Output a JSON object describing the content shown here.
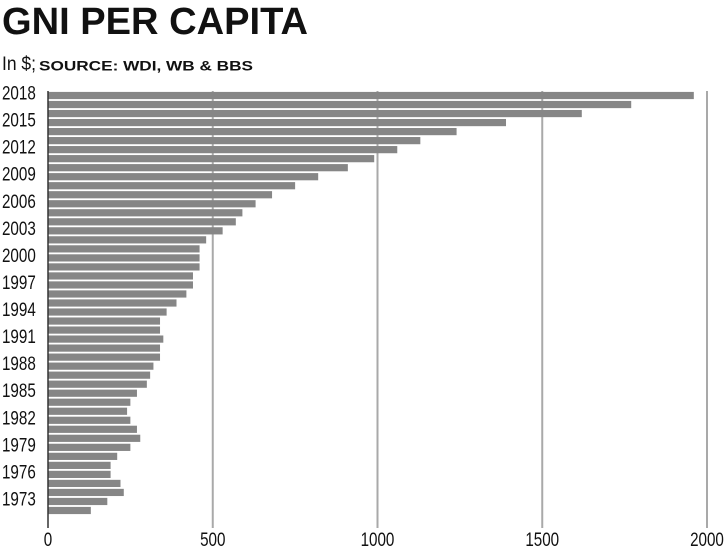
{
  "chart_data": {
    "type": "hbar",
    "title": "GNI PER CAPITA",
    "subtitle": "In $;",
    "source": "SOURCE: WDI, WB & BBS",
    "categories": [
      "2018",
      null,
      null,
      "2015",
      null,
      null,
      "2012",
      null,
      null,
      "2009",
      null,
      null,
      "2006",
      null,
      null,
      "2003",
      null,
      null,
      "2000",
      null,
      null,
      "1997",
      null,
      null,
      "1994",
      null,
      null,
      "1991",
      null,
      null,
      "1988",
      null,
      null,
      "1985",
      null,
      null,
      "1982",
      null,
      null,
      "1979",
      null,
      null,
      "1976",
      null,
      null,
      "1973",
      null
    ],
    "values": [
      1960,
      1770,
      1620,
      1390,
      1240,
      1130,
      1060,
      990,
      910,
      820,
      750,
      680,
      630,
      590,
      570,
      530,
      480,
      460,
      460,
      460,
      440,
      440,
      420,
      390,
      360,
      340,
      340,
      350,
      340,
      340,
      320,
      310,
      300,
      270,
      250,
      240,
      250,
      270,
      280,
      250,
      210,
      190,
      190,
      220,
      230,
      180,
      130
    ],
    "color": "#868686",
    "xlim": [
      0,
      2000
    ],
    "xticks": [
      0,
      500,
      1000,
      1500,
      2000
    ],
    "grid": true
  }
}
